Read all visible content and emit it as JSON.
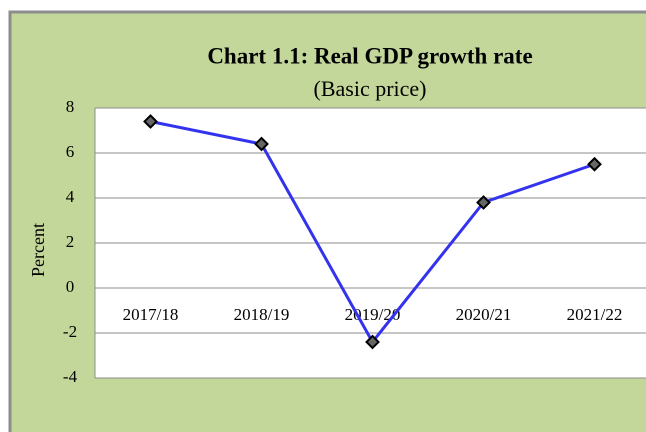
{
  "chart_data": {
    "type": "line",
    "title": "Chart 1.1: Real GDP growth rate",
    "subtitle": "(Basic price)",
    "y_label": "Percent",
    "categories": [
      "2017/18",
      "2018/19",
      "2019/20",
      "2020/21",
      "2021/22"
    ],
    "values": [
      7.4,
      6.4,
      -2.4,
      3.8,
      5.5
    ],
    "color": "#3333ee",
    "ylim": [
      -4,
      8
    ],
    "yticks": [
      -4,
      -2,
      0,
      2,
      4,
      6,
      8
    ],
    "grid": true
  }
}
